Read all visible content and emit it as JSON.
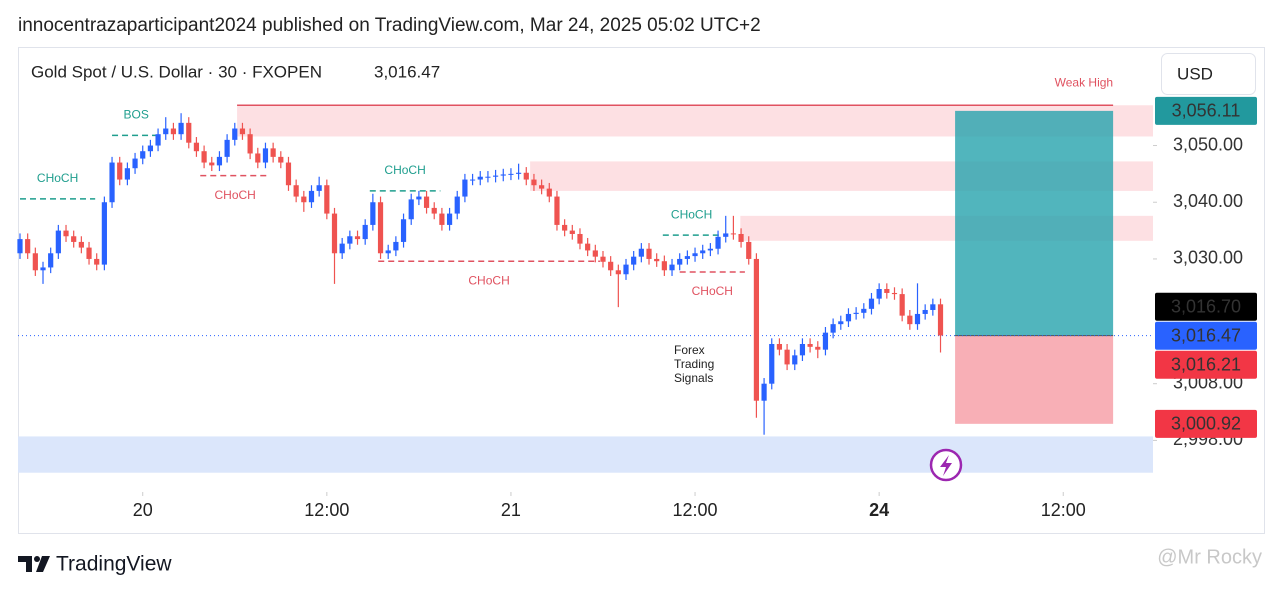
{
  "header": {
    "text": "innocentrazaparticipant2024 published on TradingView.com, Mar 24, 2025 05:02 UTC+2"
  },
  "chart_data": {
    "type": "candlestick",
    "title": "Gold Spot / U.S. Dollar · 30 · FXOPEN",
    "currency": "USD",
    "last_price": {
      "value": 3016.47,
      "label": "3,016.47",
      "color": "#f23645",
      "line_color": "#2962ff"
    },
    "up_color": "#2962ff",
    "down_color": "#ef5350",
    "x": [
      0,
      1,
      2,
      3,
      4,
      5,
      6,
      7,
      8,
      9,
      10,
      11,
      12,
      13,
      14,
      15,
      16,
      17,
      18,
      19,
      20,
      21,
      22,
      23,
      24,
      25,
      26,
      27,
      28,
      29,
      30,
      31,
      32,
      33,
      34,
      35,
      36,
      37,
      38,
      39,
      40,
      41,
      42,
      43,
      44,
      45,
      46,
      47,
      48,
      49,
      50,
      51,
      52,
      53,
      54,
      55,
      56,
      57,
      58,
      59,
      60,
      61,
      62,
      63,
      64,
      65,
      66,
      67,
      68,
      69,
      70,
      71,
      72,
      73,
      74,
      75,
      76,
      77,
      78,
      79,
      80,
      81,
      82,
      83,
      84,
      85,
      86,
      87,
      88,
      89,
      90,
      91,
      92,
      93,
      94,
      95,
      96,
      97,
      98,
      99,
      100,
      101,
      102,
      103,
      104,
      105,
      106,
      107,
      108,
      109,
      110,
      111,
      112,
      113,
      114,
      115,
      116,
      117,
      118,
      119,
      120
    ],
    "open": [
      3031,
      3033.5,
      3031,
      3028,
      3028.5,
      3031,
      3035,
      3034,
      3033,
      3032,
      3030,
      3029,
      3040,
      3047,
      3044,
      3046,
      3047.7,
      3049,
      3050,
      3052,
      3053,
      3052,
      3054,
      3050.5,
      3049,
      3047,
      3046.5,
      3048,
      3051,
      3053,
      3052,
      3048.6,
      3047,
      3049.5,
      3048,
      3047,
      3043,
      3041,
      3040,
      3042,
      3043,
      3038,
      3031,
      3032.7,
      3034,
      3033.5,
      3036,
      3040,
      3031,
      3031.5,
      3033,
      3037,
      3040.5,
      3041,
      3039,
      3038,
      3036,
      3038,
      3041,
      3044,
      3044,
      3044.5,
      3044.5,
      3044.7,
      3044.9,
      3045,
      3045.2,
      3044,
      3043,
      3042.4,
      3041,
      3036,
      3035,
      3034.4,
      3032.7,
      3031.5,
      3030.4,
      3029.5,
      3028,
      3027.3,
      3029,
      3030.4,
      3031.8,
      3030,
      3029.6,
      3028,
      3029,
      3030,
      3030.5,
      3031,
      3031.5,
      3031.8,
      3033.9,
      3034.5,
      3034.4,
      3033,
      3030,
      3005,
      3008,
      3015,
      3014,
      3011.4,
      3013,
      3015,
      3014.5,
      3014,
      3017,
      3018.5,
      3019,
      3020.3,
      3020.5,
      3021.2,
      3023,
      3024.7,
      3024,
      3023.8,
      3020,
      3018.5,
      3020.3,
      3021,
      3022
    ],
    "high": [
      3034.5,
      3034.5,
      3032,
      3029.5,
      3032,
      3036,
      3036,
      3035,
      3034,
      3033,
      3031,
      3041,
      3048,
      3048,
      3047,
      3048.7,
      3050,
      3051,
      3053,
      3055,
      3054,
      3055.7,
      3055,
      3051.5,
      3050,
      3048,
      3049,
      3052,
      3054,
      3054,
      3053,
      3049.6,
      3050.5,
      3050.5,
      3049,
      3048,
      3044,
      3042,
      3043,
      3044.5,
      3044,
      3039,
      3033.7,
      3035,
      3035,
      3037,
      3041.5,
      3041,
      3032.5,
      3034,
      3038,
      3041.5,
      3042,
      3042,
      3040,
      3039,
      3039,
      3042,
      3045,
      3045,
      3045.5,
      3045.5,
      3045.7,
      3045.9,
      3046,
      3046.8,
      3046.2,
      3045,
      3044,
      3043.4,
      3042,
      3037,
      3036,
      3035.4,
      3033.7,
      3032.5,
      3031.4,
      3030.5,
      3029,
      3030,
      3031.4,
      3032.8,
      3032.8,
      3031,
      3030.6,
      3030,
      3031,
      3031.5,
      3032,
      3032.5,
      3032.8,
      3035,
      3037.6,
      3037.6,
      3035.4,
      3034,
      3031,
      3009,
      3016,
      3016,
      3015,
      3014,
      3016,
      3016,
      3015.5,
      3018,
      3019.5,
      3020,
      3021.3,
      3021.5,
      3022.2,
      3024,
      3025.7,
      3025.7,
      3025,
      3024.8,
      3021,
      3025.7,
      3022,
      3023,
      3023
    ],
    "low": [
      3030,
      3030,
      3027,
      3025.6,
      3027.5,
      3030,
      3033,
      3032,
      3031,
      3029,
      3028,
      3028,
      3039,
      3043,
      3043,
      3045,
      3046.7,
      3048,
      3049,
      3051,
      3051,
      3051,
      3049.5,
      3048,
      3046,
      3045.5,
      3045.5,
      3047,
      3050,
      3051,
      3047.6,
      3046,
      3046,
      3047,
      3046,
      3042,
      3040,
      3038.3,
      3039,
      3041,
      3037,
      3025.6,
      3030,
      3031.7,
      3032.5,
      3032.5,
      3035,
      3030,
      3030,
      3030.5,
      3032,
      3036,
      3039.5,
      3038,
      3037,
      3035,
      3035,
      3037,
      3040,
      3043,
      3043,
      3043.5,
      3043.5,
      3043.7,
      3043.9,
      3044,
      3043,
      3042,
      3041.4,
      3040,
      3035,
      3034,
      3033.4,
      3031.7,
      3030.5,
      3029.4,
      3028.5,
      3027,
      3021.5,
      3026.3,
      3028,
      3029.4,
      3029,
      3028.6,
      3027,
      3027,
      3028,
      3029,
      3029.5,
      3030,
      3030.5,
      3030.8,
      3032.9,
      3033.4,
      3032,
      3029,
      3002,
      2999,
      3007,
      3013,
      3010.4,
      3010.4,
      3012,
      3013.5,
      3012.5,
      3013,
      3016,
      3017.5,
      3018,
      3019.3,
      3019.5,
      3020.2,
      3022,
      3023,
      3022.8,
      3019,
      3017.5,
      3017.5,
      3019.3,
      3020,
      3013.5
    ],
    "close": [
      3033.5,
      3031,
      3028,
      3028.5,
      3031,
      3035,
      3034,
      3033,
      3032,
      3030,
      3029,
      3040,
      3047,
      3044,
      3046,
      3047.7,
      3049,
      3050,
      3052,
      3053,
      3052,
      3054,
      3050.5,
      3049,
      3047,
      3046.5,
      3048,
      3051,
      3053,
      3052,
      3048.6,
      3047,
      3049.5,
      3048,
      3047,
      3043,
      3041,
      3040,
      3042,
      3043,
      3038,
      3031,
      3032.7,
      3034,
      3033.5,
      3036,
      3040,
      3031,
      3031.5,
      3033,
      3037,
      3040.5,
      3041,
      3039,
      3038,
      3036,
      3038,
      3041,
      3044,
      3044,
      3044.5,
      3044.5,
      3044.7,
      3044.9,
      3045,
      3045.2,
      3044,
      3043,
      3042.4,
      3041,
      3036,
      3035,
      3034.4,
      3032.7,
      3031.5,
      3030.4,
      3029.5,
      3028,
      3027.3,
      3029,
      3030.4,
      3031.8,
      3030,
      3029.6,
      3028,
      3029,
      3030,
      3030.5,
      3031,
      3031.5,
      3031.8,
      3033.9,
      3034.5,
      3034.4,
      3033,
      3030,
      3005,
      3008,
      3015,
      3014,
      3011.4,
      3013,
      3015,
      3014.5,
      3014,
      3017,
      3018.5,
      3019,
      3020.3,
      3020.5,
      3021.2,
      3023,
      3024.7,
      3024,
      3023.8,
      3020,
      3018.5,
      3020.3,
      3021,
      3022,
      3016.5
    ],
    "xlim": [
      -0.26,
      147.7
    ],
    "ylim": [
      2988.9,
      3067.2
    ],
    "xticks": [
      {
        "value": 16,
        "label": "20"
      },
      {
        "value": 40,
        "label": "12:00"
      },
      {
        "value": 64,
        "label": "21"
      },
      {
        "value": 88,
        "label": "12:00"
      },
      {
        "value": 112,
        "label": "24",
        "bold": true
      },
      {
        "value": 136,
        "label": "12:00"
      }
    ],
    "yticks": [
      {
        "value": 3050,
        "label": "3,050.00"
      },
      {
        "value": 3040,
        "label": "3,040.00"
      },
      {
        "value": 3030,
        "label": "3,030.00"
      },
      {
        "value": 3008,
        "label": "3,008.00"
      },
      {
        "value": 2998,
        "label": "2,998.00"
      }
    ],
    "zones": [
      {
        "y0": 3051.6,
        "y1": 3057.1,
        "x0": 28.3,
        "x1": 147.7,
        "color": "#fde0e3"
      },
      {
        "y0": 3042,
        "y1": 3047.2,
        "x0": 66.5,
        "x1": 147.7,
        "color": "#fde0e3"
      },
      {
        "y0": 3033.2,
        "y1": 3037.6,
        "x0": 93.9,
        "x1": 147.7,
        "color": "#fde0e3"
      },
      {
        "y0": 2992.3,
        "y1": 2998.7,
        "x0": -0.26,
        "x1": 147.7,
        "color": "#dbe6fb"
      }
    ],
    "weak_high": {
      "label": "Weak High",
      "price": 3057.1,
      "x0": 28.3,
      "x1": 142.5,
      "color": "#e05260"
    },
    "position": {
      "entry": 3016.47,
      "target": 3056.11,
      "stop": 3000.92,
      "x0": 121.9,
      "x1": 142.5,
      "profit_color": "#26a3ad",
      "loss_color": "#f7a6ae"
    },
    "structure": [
      {
        "label": "BOS",
        "price": 3051.8,
        "x0": 12,
        "x1": 18.3,
        "color": "#1f9e8e",
        "label_position": "above"
      },
      {
        "label": "CHoCH",
        "price": 3040.6,
        "x0": 0,
        "x1": 9.8,
        "color": "#1f9e8e",
        "label_position": "above"
      },
      {
        "label": "CHoCH",
        "price": 3044.7,
        "x0": 23.5,
        "x1": 32.6,
        "color": "#e05260",
        "label_position": "below"
      },
      {
        "label": "CHoCH",
        "price": 3042,
        "x0": 45.6,
        "x1": 54.8,
        "color": "#1f9e8e",
        "label_position": "above"
      },
      {
        "label": "CHoCH",
        "price": 3029.6,
        "x0": 46.7,
        "x1": 75.6,
        "color": "#e05260",
        "label_position": "below"
      },
      {
        "label": "CHoCH",
        "price": 3034.2,
        "x0": 83.8,
        "x1": 91.3,
        "color": "#1f9e8e",
        "label_position": "above"
      },
      {
        "label": "CHoCH",
        "price": 3027.7,
        "x0": 86,
        "x1": 94.5,
        "color": "#e05260",
        "label_position": "below"
      }
    ],
    "note": [
      "Forex",
      "Trading",
      "Signals"
    ],
    "price_labels": [
      {
        "value": 3056.11,
        "label": "3,056.11",
        "color": "#22999e"
      },
      {
        "value": 3016.7,
        "label": "3,016.70",
        "color": "#000000"
      },
      {
        "value": 3016.47,
        "label": "3,016.47",
        "color": "#2962ff"
      },
      {
        "value": 3016.21,
        "label": "3,016.21",
        "color": "#f23645"
      },
      {
        "value": 3000.92,
        "label": "3,000.92",
        "color": "#f23645"
      }
    ]
  },
  "footer": {
    "brand": "TradingView",
    "watermark": "@Mr Rocky"
  }
}
